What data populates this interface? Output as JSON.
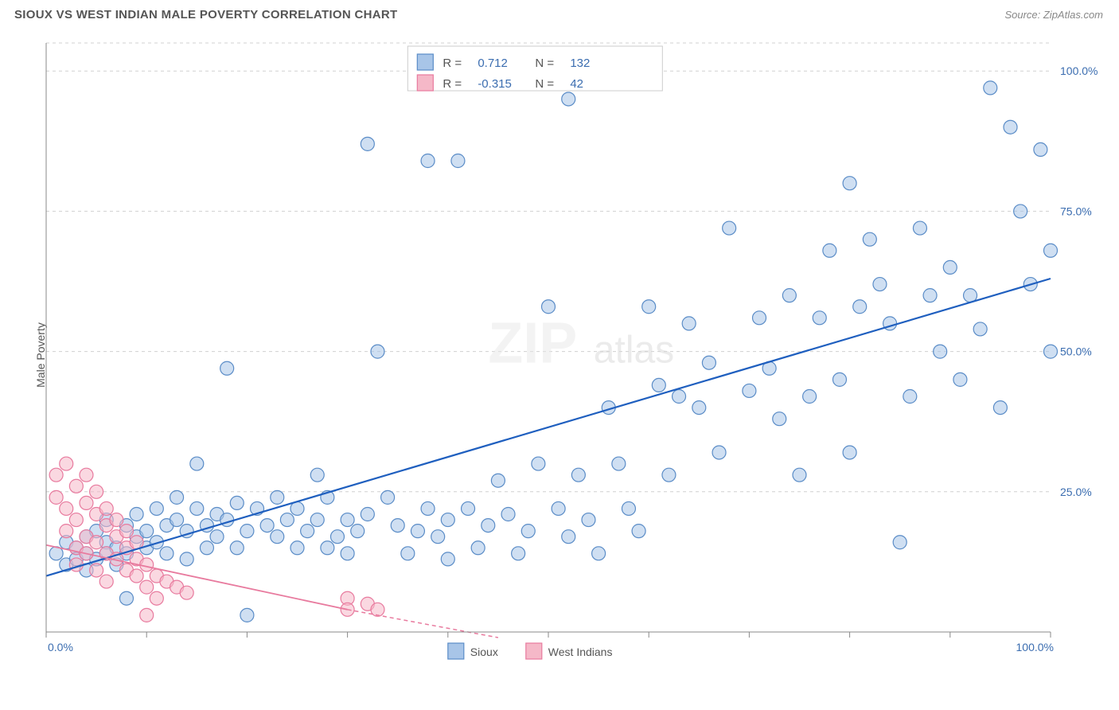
{
  "header": {
    "title": "SIOUX VS WEST INDIAN MALE POVERTY CORRELATION CHART",
    "source": "Source: ZipAtlas.com"
  },
  "yAxisLabel": "Male Poverty",
  "watermark": {
    "part1": "ZIP",
    "part2": "atlas"
  },
  "chart": {
    "type": "scatter",
    "xlim": [
      0,
      100
    ],
    "ylim": [
      0,
      105
    ],
    "xTicks": [
      0,
      10,
      20,
      30,
      40,
      50,
      60,
      70,
      80,
      90,
      100
    ],
    "xTickLabels": {
      "0": "0.0%",
      "100": "100.0%"
    },
    "yTicks": [
      25,
      50,
      75,
      100
    ],
    "yTickLabels": {
      "25": "25.0%",
      "50": "50.0%",
      "75": "75.0%",
      "100": "100.0%"
    },
    "gridY": [
      25,
      50,
      75,
      100,
      105
    ],
    "marker_radius": 8.5,
    "background_color": "#ffffff",
    "grid_color": "#d0d0d0",
    "axis_color": "#888888",
    "tick_label_color": "#3b6db0",
    "series": [
      {
        "name": "Sioux",
        "color_fill": "#a8c5e8",
        "color_stroke": "#5a8cc7",
        "R": "0.712",
        "N": "132",
        "trend": {
          "x1": 0,
          "y1": 10,
          "x2": 100,
          "y2": 63,
          "color": "#1f5fbf",
          "width": 2.2
        },
        "points": [
          [
            1,
            14
          ],
          [
            2,
            12
          ],
          [
            2,
            16
          ],
          [
            3,
            15
          ],
          [
            3,
            13
          ],
          [
            4,
            14
          ],
          [
            4,
            17
          ],
          [
            4,
            11
          ],
          [
            5,
            13
          ],
          [
            5,
            18
          ],
          [
            6,
            16
          ],
          [
            6,
            14
          ],
          [
            6,
            20
          ],
          [
            7,
            15
          ],
          [
            7,
            12
          ],
          [
            8,
            19
          ],
          [
            8,
            14
          ],
          [
            8,
            6
          ],
          [
            9,
            17
          ],
          [
            9,
            21
          ],
          [
            10,
            15
          ],
          [
            10,
            18
          ],
          [
            11,
            22
          ],
          [
            11,
            16
          ],
          [
            12,
            19
          ],
          [
            12,
            14
          ],
          [
            13,
            20
          ],
          [
            13,
            24
          ],
          [
            14,
            13
          ],
          [
            14,
            18
          ],
          [
            15,
            30
          ],
          [
            15,
            22
          ],
          [
            16,
            19
          ],
          [
            16,
            15
          ],
          [
            17,
            21
          ],
          [
            17,
            17
          ],
          [
            18,
            47
          ],
          [
            18,
            20
          ],
          [
            19,
            23
          ],
          [
            19,
            15
          ],
          [
            20,
            18
          ],
          [
            20,
            3
          ],
          [
            21,
            22
          ],
          [
            22,
            19
          ],
          [
            23,
            17
          ],
          [
            23,
            24
          ],
          [
            24,
            20
          ],
          [
            25,
            22
          ],
          [
            25,
            15
          ],
          [
            26,
            18
          ],
          [
            27,
            28
          ],
          [
            27,
            20
          ],
          [
            28,
            24
          ],
          [
            28,
            15
          ],
          [
            29,
            17
          ],
          [
            30,
            14
          ],
          [
            30,
            20
          ],
          [
            31,
            18
          ],
          [
            32,
            87
          ],
          [
            32,
            21
          ],
          [
            33,
            50
          ],
          [
            34,
            24
          ],
          [
            35,
            19
          ],
          [
            36,
            14
          ],
          [
            37,
            18
          ],
          [
            38,
            84
          ],
          [
            38,
            22
          ],
          [
            39,
            17
          ],
          [
            40,
            20
          ],
          [
            40,
            13
          ],
          [
            41,
            84
          ],
          [
            42,
            22
          ],
          [
            43,
            15
          ],
          [
            44,
            19
          ],
          [
            45,
            27
          ],
          [
            46,
            21
          ],
          [
            47,
            14
          ],
          [
            48,
            18
          ],
          [
            49,
            30
          ],
          [
            50,
            58
          ],
          [
            51,
            22
          ],
          [
            52,
            95
          ],
          [
            52,
            17
          ],
          [
            53,
            28
          ],
          [
            54,
            20
          ],
          [
            55,
            14
          ],
          [
            56,
            40
          ],
          [
            57,
            30
          ],
          [
            58,
            22
          ],
          [
            59,
            18
          ],
          [
            60,
            58
          ],
          [
            61,
            44
          ],
          [
            62,
            28
          ],
          [
            63,
            42
          ],
          [
            64,
            55
          ],
          [
            65,
            40
          ],
          [
            66,
            48
          ],
          [
            67,
            32
          ],
          [
            68,
            72
          ],
          [
            70,
            43
          ],
          [
            71,
            56
          ],
          [
            72,
            47
          ],
          [
            73,
            38
          ],
          [
            74,
            60
          ],
          [
            75,
            28
          ],
          [
            76,
            42
          ],
          [
            77,
            56
          ],
          [
            78,
            68
          ],
          [
            79,
            45
          ],
          [
            80,
            32
          ],
          [
            80,
            80
          ],
          [
            81,
            58
          ],
          [
            82,
            70
          ],
          [
            83,
            62
          ],
          [
            84,
            55
          ],
          [
            85,
            16
          ],
          [
            86,
            42
          ],
          [
            87,
            72
          ],
          [
            88,
            60
          ],
          [
            89,
            50
          ],
          [
            90,
            65
          ],
          [
            91,
            45
          ],
          [
            92,
            60
          ],
          [
            93,
            54
          ],
          [
            94,
            97
          ],
          [
            95,
            40
          ],
          [
            96,
            90
          ],
          [
            97,
            75
          ],
          [
            98,
            62
          ],
          [
            99,
            86
          ],
          [
            100,
            68
          ],
          [
            100,
            50
          ]
        ]
      },
      {
        "name": "West Indians",
        "color_fill": "#f5b8c8",
        "color_stroke": "#e87a9e",
        "R": "-0.315",
        "N": "42",
        "trend_solid": {
          "x1": 0,
          "y1": 15.5,
          "x2": 30,
          "y2": 4,
          "color": "#e87a9e",
          "width": 1.8
        },
        "trend_dash": {
          "x1": 30,
          "y1": 4,
          "x2": 45,
          "y2": -1,
          "color": "#e87a9e",
          "width": 1.5
        },
        "points": [
          [
            1,
            28
          ],
          [
            1,
            24
          ],
          [
            2,
            30
          ],
          [
            2,
            22
          ],
          [
            2,
            18
          ],
          [
            3,
            26
          ],
          [
            3,
            20
          ],
          [
            3,
            15
          ],
          [
            3,
            12
          ],
          [
            4,
            23
          ],
          [
            4,
            28
          ],
          [
            4,
            17
          ],
          [
            4,
            14
          ],
          [
            5,
            21
          ],
          [
            5,
            16
          ],
          [
            5,
            11
          ],
          [
            5,
            25
          ],
          [
            6,
            19
          ],
          [
            6,
            14
          ],
          [
            6,
            9
          ],
          [
            6,
            22
          ],
          [
            7,
            17
          ],
          [
            7,
            13
          ],
          [
            7,
            20
          ],
          [
            8,
            15
          ],
          [
            8,
            11
          ],
          [
            8,
            18
          ],
          [
            9,
            13
          ],
          [
            9,
            10
          ],
          [
            9,
            16
          ],
          [
            10,
            12
          ],
          [
            10,
            8
          ],
          [
            10,
            3
          ],
          [
            11,
            10
          ],
          [
            11,
            6
          ],
          [
            12,
            9
          ],
          [
            13,
            8
          ],
          [
            14,
            7
          ],
          [
            30,
            6
          ],
          [
            30,
            4
          ],
          [
            32,
            5
          ],
          [
            33,
            4
          ]
        ]
      }
    ]
  },
  "statsLegend": {
    "rows": [
      {
        "swatch": "blue",
        "R_label": "R =",
        "R": "0.712",
        "N_label": "N =",
        "N": "132"
      },
      {
        "swatch": "pink",
        "R_label": "R =",
        "R": "-0.315",
        "N_label": "N =",
        "N": "42"
      }
    ]
  },
  "bottomLegend": {
    "items": [
      {
        "swatch": "blue",
        "label": "Sioux"
      },
      {
        "swatch": "pink",
        "label": "West Indians"
      }
    ]
  }
}
